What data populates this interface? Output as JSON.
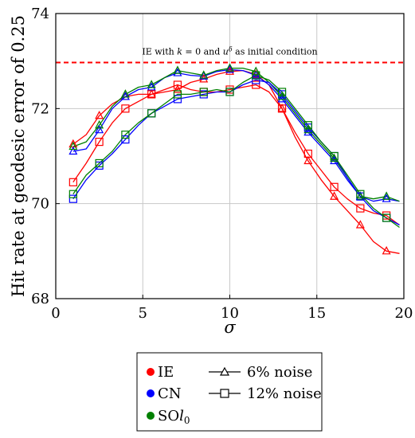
{
  "chart_data": {
    "type": "line",
    "xlabel": "σ",
    "ylabel": "Hit rate at geodesic error of 0.25",
    "xlim": [
      0,
      20
    ],
    "ylim": [
      68,
      74
    ],
    "xticks": [
      0,
      5,
      10,
      15,
      20
    ],
    "yticks": [
      68,
      70,
      72,
      74
    ],
    "grid": true,
    "reference_line": {
      "y": 72.97,
      "color": "#ff0000",
      "style": "dashed",
      "label_parts": [
        "IE with ",
        "k",
        " = 0 and ",
        "u",
        "δ",
        " as initial condition"
      ]
    },
    "x": [
      1,
      1.75,
      2.5,
      3.25,
      4,
      4.75,
      5.5,
      6.25,
      7,
      7.75,
      8.5,
      9.25,
      10,
      10.75,
      11.5,
      12.25,
      13,
      13.75,
      14.5,
      15.25,
      16,
      16.75,
      17.5,
      18.25,
      19,
      19.75
    ],
    "marker_x": [
      1,
      2.5,
      4,
      5.5,
      7,
      8.5,
      10,
      11.5,
      13,
      14.5,
      16,
      17.5,
      19
    ],
    "series": [
      {
        "method": "IE",
        "noise": "6% noise",
        "color": "#ff0000",
        "marker": "triangle",
        "values": [
          71.25,
          71.45,
          71.85,
          72.1,
          72.25,
          72.3,
          72.3,
          72.35,
          72.4,
          72.55,
          72.62,
          72.72,
          72.78,
          72.8,
          72.72,
          72.5,
          72.0,
          71.4,
          70.9,
          70.5,
          70.15,
          69.85,
          69.55,
          69.2,
          69.0,
          68.95
        ]
      },
      {
        "method": "CN",
        "noise": "6% noise",
        "color": "#0000ff",
        "marker": "triangle",
        "values": [
          71.1,
          71.15,
          71.55,
          72.0,
          72.25,
          72.4,
          72.45,
          72.65,
          72.75,
          72.7,
          72.68,
          72.78,
          72.82,
          72.8,
          72.7,
          72.5,
          72.2,
          71.85,
          71.5,
          71.2,
          70.9,
          70.5,
          70.15,
          70.05,
          70.1,
          70.05
        ]
      },
      {
        "method": "SOl0",
        "noise": "6% noise",
        "color": "#008000",
        "marker": "triangle",
        "values": [
          71.2,
          71.3,
          71.65,
          72.05,
          72.3,
          72.45,
          72.5,
          72.65,
          72.8,
          72.75,
          72.7,
          72.8,
          72.85,
          72.85,
          72.78,
          72.55,
          72.25,
          71.9,
          71.55,
          71.25,
          70.95,
          70.55,
          70.15,
          70.1,
          70.15,
          70.05
        ]
      },
      {
        "method": "IE",
        "noise": "12% noise",
        "color": "#ff0000",
        "marker": "square",
        "values": [
          70.45,
          70.85,
          71.3,
          71.7,
          72.0,
          72.15,
          72.3,
          72.4,
          72.5,
          72.4,
          72.35,
          72.35,
          72.4,
          72.45,
          72.5,
          72.35,
          72.0,
          71.5,
          71.05,
          70.7,
          70.35,
          70.1,
          69.9,
          69.8,
          69.75,
          69.55
        ]
      },
      {
        "method": "CN",
        "noise": "12% noise",
        "color": "#0000ff",
        "marker": "square",
        "values": [
          70.1,
          70.5,
          70.8,
          71.05,
          71.35,
          71.65,
          71.9,
          72.05,
          72.2,
          72.25,
          72.3,
          72.35,
          72.35,
          72.5,
          72.6,
          72.55,
          72.3,
          71.95,
          71.6,
          71.3,
          71.0,
          70.55,
          70.15,
          69.85,
          69.7,
          69.55
        ]
      },
      {
        "method": "SOl0",
        "noise": "12% noise",
        "color": "#008000",
        "marker": "square",
        "values": [
          70.2,
          70.6,
          70.85,
          71.1,
          71.45,
          71.7,
          71.9,
          72.1,
          72.3,
          72.3,
          72.35,
          72.4,
          72.35,
          72.55,
          72.7,
          72.6,
          72.35,
          72.0,
          71.65,
          71.3,
          71.0,
          70.6,
          70.2,
          69.9,
          69.7,
          69.5
        ]
      }
    ],
    "legend": {
      "position": "bottom",
      "methods": [
        {
          "label": "IE",
          "color": "#ff0000"
        },
        {
          "label": "CN",
          "color": "#0000ff"
        },
        {
          "label_parts": [
            "SO",
            "l",
            "0"
          ],
          "color": "#008000"
        }
      ],
      "noise_levels": [
        {
          "label": "6% noise",
          "marker": "triangle"
        },
        {
          "label": "12% noise",
          "marker": "square"
        }
      ]
    }
  }
}
